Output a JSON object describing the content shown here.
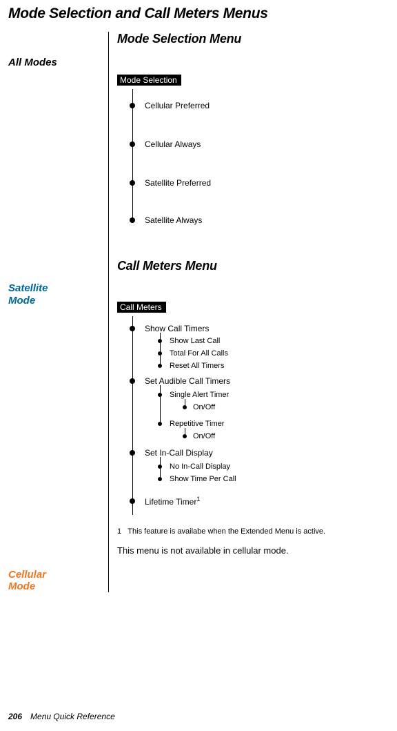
{
  "page_title": "Mode Selection and Call Meters Menus",
  "section1": {
    "title": "Mode Selection Menu",
    "side_label": "All Modes",
    "menu_header": "Mode Selection",
    "items": [
      "Cellular Preferred",
      "Cellular Always",
      "Satellite Preferred",
      "Satellite Always"
    ]
  },
  "section2": {
    "title": "Call Meters Menu",
    "side_label_sat": "Satellite Mode",
    "side_label_cell": "Cellular Mode",
    "menu_header": "Call Meters",
    "n1": "Show Call Timers",
    "n1c": [
      "Show Last Call",
      "Total For All Calls",
      "Reset All Timers"
    ],
    "n2": "Set Audible Call Timers",
    "n2a": "Single Alert Timer",
    "n2a1": "On/Off",
    "n2b": "Repetitive Timer",
    "n2b1": "On/Off",
    "n3": "Set In-Call Display",
    "n3c": [
      "No In-Call Display",
      "Show Time Per Call"
    ],
    "n4": "Lifetime Timer",
    "n4sup": "1",
    "footnote_num": "1",
    "footnote_text": "This feature is availabe when the Extended Menu is active.",
    "cell_text": "This menu is not available in cellular mode."
  },
  "footer": {
    "page": "206",
    "chapter": "Menu Quick Reference"
  }
}
